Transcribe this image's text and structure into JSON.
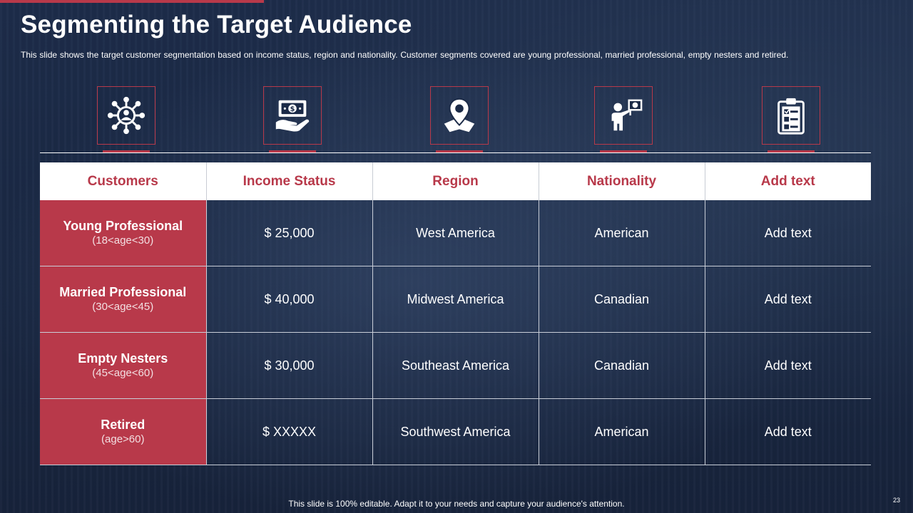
{
  "slide": {
    "title": "Segmenting the Target Audience",
    "subtitle": "This slide shows the target customer segmentation based on income status, region and nationality. Customer segments covered  are young professional,  married professional,  empty nesters and retired.",
    "footer": "This slide is 100% editable. Adapt it to your needs and capture your audience's attention.",
    "page_number": "23"
  },
  "icons": [
    {
      "name": "network-people-icon"
    },
    {
      "name": "money-hand-icon"
    },
    {
      "name": "map-pin-icon"
    },
    {
      "name": "presenter-sign-icon"
    },
    {
      "name": "clipboard-checklist-icon"
    }
  ],
  "table": {
    "headers": [
      "Customers",
      "Income Status",
      "Region",
      "Nationality",
      "Add text"
    ],
    "rows": [
      {
        "customer": "Young Professional",
        "age": "(18<age<30)",
        "income": "$ 25,000",
        "region": "West America",
        "nationality": "American",
        "extra": "Add text"
      },
      {
        "customer": "Married Professional",
        "age": "(30<age<45)",
        "income": "$ 40,000",
        "region": "Midwest America",
        "nationality": "Canadian",
        "extra": "Add text"
      },
      {
        "customer": "Empty Nesters",
        "age": "(45<age<60)",
        "income": "$ 30,000",
        "region": "Southeast America",
        "nationality": "Canadian",
        "extra": "Add text"
      },
      {
        "customer": "Retired",
        "age": "(age>60)",
        "income": "$ XXXXX",
        "region": "Southwest America",
        "nationality": "American",
        "extra": "Add text"
      }
    ]
  },
  "colors": {
    "accent": "#b8394a",
    "background": "#1b2a47",
    "header_bg": "#ffffff"
  }
}
